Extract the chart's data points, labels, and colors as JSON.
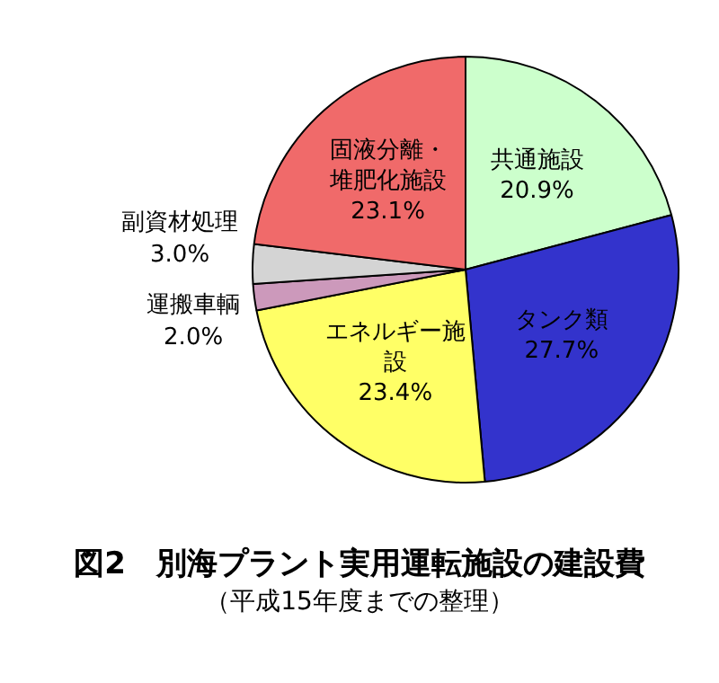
{
  "chart_data": {
    "type": "pie",
    "title": "図2　別海プラント実用運転施設の建設費",
    "subtitle": "（平成15年度までの整理）",
    "categories": [
      "共通施設",
      "タンク類",
      "エネルギー施設",
      "運搬車輌",
      "副資材処理",
      "固液分離・堆肥化施設"
    ],
    "values": [
      20.9,
      27.7,
      23.4,
      2.0,
      3.0,
      23.1
    ],
    "value_labels": [
      "20.9%",
      "27.7%",
      "23.4%",
      "2.0%",
      "3.0%",
      "23.1%"
    ],
    "colors": [
      "#ccffcc",
      "#3333cc",
      "#ffff66",
      "#cc99bb",
      "#d4d4d4",
      "#f06a6a"
    ],
    "legend": false
  }
}
